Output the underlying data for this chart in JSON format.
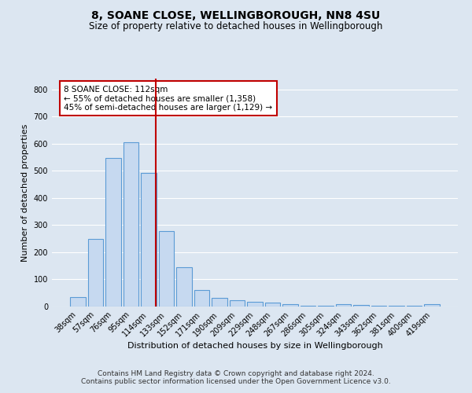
{
  "title": "8, SOANE CLOSE, WELLINGBOROUGH, NN8 4SU",
  "subtitle": "Size of property relative to detached houses in Wellingborough",
  "xlabel": "Distribution of detached houses by size in Wellingborough",
  "ylabel": "Number of detached properties",
  "categories": [
    "38sqm",
    "57sqm",
    "76sqm",
    "95sqm",
    "114sqm",
    "133sqm",
    "152sqm",
    "171sqm",
    "190sqm",
    "209sqm",
    "229sqm",
    "248sqm",
    "267sqm",
    "286sqm",
    "305sqm",
    "324sqm",
    "343sqm",
    "362sqm",
    "381sqm",
    "400sqm",
    "419sqm"
  ],
  "values": [
    35,
    249,
    548,
    605,
    493,
    278,
    145,
    62,
    32,
    22,
    16,
    15,
    10,
    4,
    4,
    10,
    7,
    4,
    4,
    2,
    10
  ],
  "bar_color": "#c6d9f0",
  "bar_edge_color": "#5b9bd5",
  "marker_line_color": "#c00000",
  "annotation_text": "8 SOANE CLOSE: 112sqm\n← 55% of detached houses are smaller (1,358)\n45% of semi-detached houses are larger (1,129) →",
  "annotation_box_color": "#ffffff",
  "annotation_box_edge_color": "#c00000",
  "ylim": [
    0,
    840
  ],
  "yticks": [
    0,
    100,
    200,
    300,
    400,
    500,
    600,
    700,
    800
  ],
  "bg_color": "#dce6f1",
  "plot_bg_color": "#dce6f1",
  "grid_color": "#ffffff",
  "footer_text": "Contains HM Land Registry data © Crown copyright and database right 2024.\nContains public sector information licensed under the Open Government Licence v3.0.",
  "title_fontsize": 10,
  "subtitle_fontsize": 8.5,
  "xlabel_fontsize": 8,
  "ylabel_fontsize": 8,
  "tick_fontsize": 7,
  "annotation_fontsize": 7.5,
  "footer_fontsize": 6.5
}
